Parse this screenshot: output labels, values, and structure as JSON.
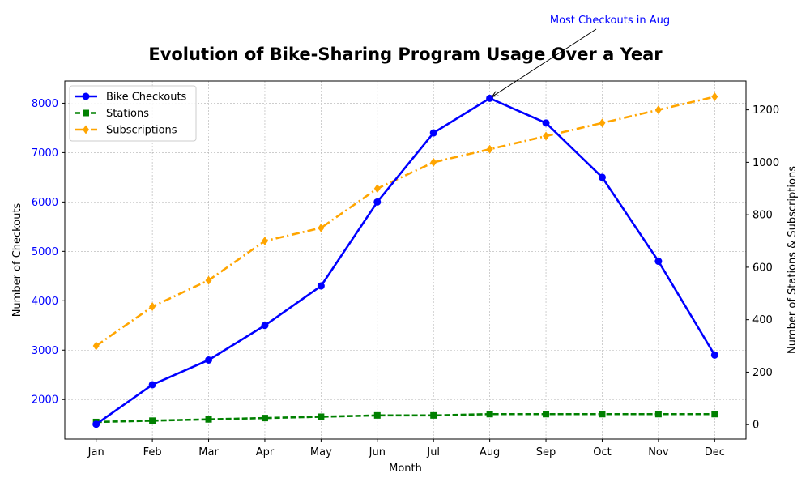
{
  "chart_data": {
    "type": "line",
    "title": "Evolution of Bike-Sharing Program Usage Over a Year",
    "xlabel": "Month",
    "ylabel_left": "Number of Checkouts",
    "ylabel_right": "Number of Stations & Subscriptions",
    "categories": [
      "Jan",
      "Feb",
      "Mar",
      "Apr",
      "May",
      "Jun",
      "Jul",
      "Aug",
      "Sep",
      "Oct",
      "Nov",
      "Dec"
    ],
    "ylim_left": [
      1200,
      8450
    ],
    "ylim_right": [
      -55,
      1310
    ],
    "yticks_left": [
      2000,
      3000,
      4000,
      5000,
      6000,
      7000,
      8000
    ],
    "yticks_right": [
      0,
      200,
      400,
      600,
      800,
      1000,
      1200
    ],
    "grid": true,
    "legend_position": "upper-left",
    "series": [
      {
        "name": "Bike Checkouts",
        "axis": "left",
        "color": "#0000ff",
        "marker": "circle",
        "dash": "solid",
        "values": [
          1500,
          2300,
          2800,
          3500,
          4300,
          6000,
          7400,
          8100,
          7600,
          6500,
          4800,
          2900
        ]
      },
      {
        "name": "Stations",
        "axis": "right",
        "color": "#008000",
        "marker": "square",
        "dash": "dashed",
        "values": [
          10,
          15,
          20,
          25,
          30,
          35,
          35,
          40,
          40,
          40,
          40,
          40
        ]
      },
      {
        "name": "Subscriptions",
        "axis": "right",
        "color": "#ffa500",
        "marker": "diamond",
        "dash": "dashdot",
        "values": [
          300,
          450,
          550,
          700,
          750,
          900,
          1000,
          1050,
          1100,
          1150,
          1200,
          1250
        ]
      }
    ],
    "annotation": {
      "text": "Most Checkouts in Aug",
      "x": "Aug",
      "y": 8100,
      "color": "#0000ff"
    }
  }
}
